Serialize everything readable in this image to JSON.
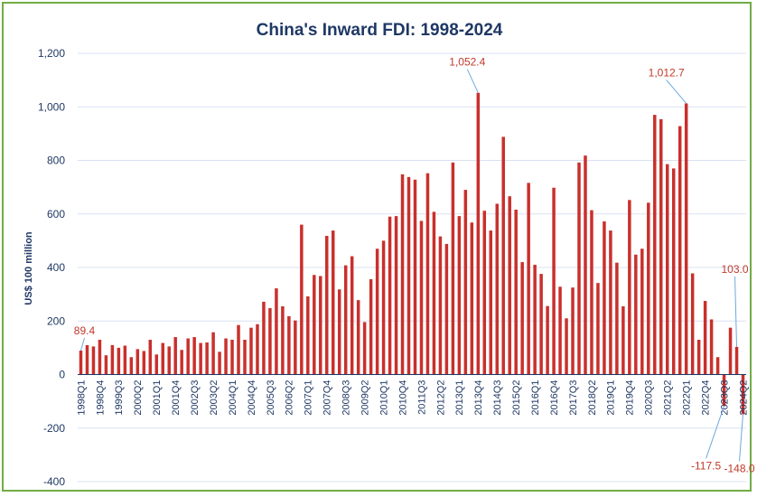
{
  "chart_data": {
    "type": "bar",
    "title": "China's Inward FDI: 1998-2024",
    "ylabel": "US$ 100 million",
    "xlabel": "",
    "ylim": [
      -400,
      1200
    ],
    "yticks": [
      -400,
      -200,
      0,
      200,
      400,
      600,
      800,
      1000,
      1200
    ],
    "ytick_labels": [
      "-400",
      "-200",
      "0",
      "200",
      "400",
      "600",
      "800",
      "1,000",
      "1,200"
    ],
    "grid": true,
    "legend": "none",
    "bar_color": "#c9302c",
    "categories": [
      "1998Q1",
      "1998Q2",
      "1998Q3",
      "1998Q4",
      "1999Q1",
      "1999Q2",
      "1999Q3",
      "1999Q4",
      "2000Q1",
      "2000Q2",
      "2000Q3",
      "2000Q4",
      "2001Q1",
      "2001Q2",
      "2001Q3",
      "2001Q4",
      "2002Q1",
      "2002Q2",
      "2002Q3",
      "2002Q4",
      "2003Q1",
      "2003Q2",
      "2003Q3",
      "2003Q4",
      "2004Q1",
      "2004Q2",
      "2004Q3",
      "2004Q4",
      "2005Q1",
      "2005Q2",
      "2005Q3",
      "2005Q4",
      "2006Q1",
      "2006Q2",
      "2006Q3",
      "2006Q4",
      "2007Q1",
      "2007Q2",
      "2007Q3",
      "2007Q4",
      "2008Q1",
      "2008Q2",
      "2008Q3",
      "2008Q4",
      "2009Q1",
      "2009Q2",
      "2009Q3",
      "2009Q4",
      "2010Q1",
      "2010Q2",
      "2010Q3",
      "2010Q4",
      "2011Q1",
      "2011Q2",
      "2011Q3",
      "2011Q4",
      "2012Q1",
      "2012Q2",
      "2012Q3",
      "2012Q4",
      "2013Q1",
      "2013Q2",
      "2013Q3",
      "2013Q4",
      "2014Q1",
      "2014Q2",
      "2014Q3",
      "2014Q4",
      "2015Q1",
      "2015Q2",
      "2015Q3",
      "2015Q4",
      "2016Q1",
      "2016Q2",
      "2016Q3",
      "2016Q4",
      "2017Q1",
      "2017Q2",
      "2017Q3",
      "2017Q4",
      "2018Q1",
      "2018Q2",
      "2018Q3",
      "2018Q4",
      "2019Q1",
      "2019Q2",
      "2019Q3",
      "2019Q4",
      "2020Q1",
      "2020Q2",
      "2020Q3",
      "2020Q4",
      "2021Q1",
      "2021Q2",
      "2021Q3",
      "2021Q4",
      "2022Q1",
      "2022Q2",
      "2022Q3",
      "2022Q4",
      "2023Q1",
      "2023Q2",
      "2023Q3",
      "2023Q4",
      "2024Q1",
      "2024Q2"
    ],
    "xtick_labels": [
      "1998Q1",
      "1998Q4",
      "1999Q3",
      "2000Q2",
      "2001Q1",
      "2001Q4",
      "2002Q3",
      "2003Q2",
      "2004Q1",
      "2004Q4",
      "2005Q3",
      "2006Q2",
      "2007Q1",
      "2007Q4",
      "2008Q3",
      "2009Q2",
      "2010Q1",
      "2010Q4",
      "2011Q3",
      "2012Q2",
      "2013Q1",
      "2013Q4",
      "2014Q3",
      "2015Q2",
      "2016Q1",
      "2016Q4",
      "2017Q3",
      "2018Q2",
      "2019Q1",
      "2019Q4",
      "2020Q3",
      "2021Q2",
      "2022Q1",
      "2022Q4",
      "2023Q3",
      "2024Q2"
    ],
    "values": [
      89.4,
      110,
      105,
      130,
      72,
      110,
      100,
      108,
      65,
      95,
      88,
      130,
      75,
      118,
      105,
      140,
      92,
      135,
      140,
      118,
      120,
      158,
      85,
      135,
      130,
      185,
      130,
      175,
      188,
      272,
      248,
      322,
      255,
      218,
      202,
      560,
      292,
      372,
      368,
      518,
      538,
      318,
      408,
      442,
      278,
      196,
      356,
      470,
      500,
      590,
      592,
      748,
      738,
      728,
      574,
      752,
      608,
      516,
      488,
      792,
      592,
      690,
      568,
      1052.4,
      612,
      538,
      638,
      888,
      666,
      616,
      420,
      716,
      410,
      376,
      256,
      698,
      328,
      210,
      325,
      792,
      818,
      614,
      342,
      572,
      538,
      418,
      255,
      652,
      448,
      470,
      642,
      970,
      954,
      786,
      770,
      928,
      1012.7,
      378,
      130,
      275,
      206,
      65,
      -117.5,
      175,
      103.0,
      -148.0
    ],
    "annotations": [
      {
        "category": "1998Q1",
        "label": "89.4"
      },
      {
        "category": "2013Q4",
        "label": "1,052.4"
      },
      {
        "category": "2022Q1",
        "label": "1,012.7"
      },
      {
        "category": "2023Q3",
        "label": "-117.5"
      },
      {
        "category": "2024Q1",
        "label": "103.0"
      },
      {
        "category": "2024Q2",
        "label": "-148.0"
      }
    ]
  }
}
